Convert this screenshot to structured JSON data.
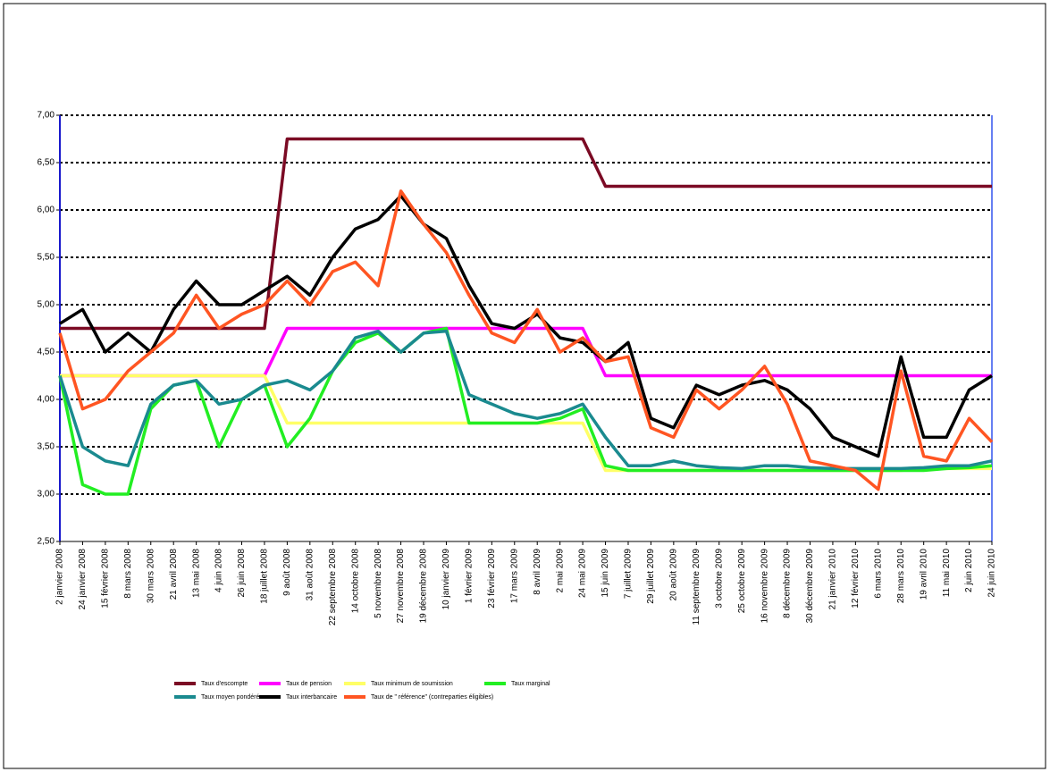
{
  "chart_data": {
    "type": "line",
    "categories": [
      "2 janvier 2008",
      "24 janvier 2008",
      "15 février 2008",
      "8 mars 2008",
      "30 mars 2008",
      "21 avril 2008",
      "13 mai 2008",
      "4 juin 2008",
      "26 juin 2008",
      "18 juillet 2008",
      "9 août 2008",
      "31 août 2008",
      "22 septembre 2008",
      "14 octobre 2008",
      "5 novembre 2008",
      "27 novembre 2008",
      "19 décembre 2008",
      "10 janvier 2009",
      "1 février 2009",
      "23 février 2009",
      "17 mars 2009",
      "8 avril 2009",
      "2 mai 2009",
      "24 mai 2009",
      "15 juin 2009",
      "7 juillet 2009",
      "29 juillet 2009",
      "20 août 2009",
      "11 septembre 2009",
      "3 octobre 2009",
      "25 octobre 2009",
      "16 novembre 2009",
      "8 décembre 2009",
      "30 décembre 2009",
      "21 janvier 2010",
      "12 février 2010",
      "6 mars 2010",
      "28 mars 2010",
      "19 avril 2010",
      "11 mai 2010",
      "2 juin 2010",
      "24 juin 2010"
    ],
    "series": [
      {
        "name": "Taux d'escompte",
        "color": "#7b0a24",
        "values": [
          4.75,
          4.75,
          4.75,
          4.75,
          4.75,
          4.75,
          4.75,
          4.75,
          4.75,
          4.75,
          6.75,
          6.75,
          6.75,
          6.75,
          6.75,
          6.75,
          6.75,
          6.75,
          6.75,
          6.75,
          6.75,
          6.75,
          6.75,
          6.75,
          6.25,
          6.25,
          6.25,
          6.25,
          6.25,
          6.25,
          6.25,
          6.25,
          6.25,
          6.25,
          6.25,
          6.25,
          6.25,
          6.25,
          6.25,
          6.25,
          6.25,
          6.25
        ]
      },
      {
        "name": "Taux de pension",
        "color": "#ff00ff",
        "values": [
          4.25,
          4.25,
          4.25,
          4.25,
          4.25,
          4.25,
          4.25,
          4.25,
          4.25,
          4.25,
          4.75,
          4.75,
          4.75,
          4.75,
          4.75,
          4.75,
          4.75,
          4.75,
          4.75,
          4.75,
          4.75,
          4.75,
          4.75,
          4.75,
          4.25,
          4.25,
          4.25,
          4.25,
          4.25,
          4.25,
          4.25,
          4.25,
          4.25,
          4.25,
          4.25,
          4.25,
          4.25,
          4.25,
          4.25,
          4.25,
          4.25,
          4.25
        ]
      },
      {
        "name": "Taux minimum de soumission",
        "color": "#ffff66",
        "values": [
          4.25,
          4.25,
          4.25,
          4.25,
          4.25,
          4.25,
          4.25,
          4.25,
          4.25,
          4.25,
          3.75,
          3.75,
          3.75,
          3.75,
          3.75,
          3.75,
          3.75,
          3.75,
          3.75,
          3.75,
          3.75,
          3.75,
          3.75,
          3.75,
          3.25,
          3.25,
          3.25,
          3.25,
          3.25,
          3.25,
          3.25,
          3.25,
          3.25,
          3.25,
          3.25,
          3.25,
          3.25,
          3.25,
          3.27,
          3.27,
          3.27,
          3.27
        ]
      },
      {
        "name": "Taux marginal",
        "color": "#22ee22",
        "values": [
          4.25,
          3.1,
          3.0,
          3.0,
          3.9,
          4.15,
          4.2,
          3.5,
          4.0,
          4.15,
          3.5,
          3.8,
          4.3,
          4.6,
          4.7,
          4.5,
          4.7,
          4.75,
          3.75,
          3.75,
          3.75,
          3.75,
          3.8,
          3.9,
          3.3,
          3.25,
          3.25,
          3.25,
          3.25,
          3.25,
          3.25,
          3.25,
          3.25,
          3.25,
          3.25,
          3.25,
          3.25,
          3.25,
          3.25,
          3.27,
          3.28,
          3.3
        ]
      },
      {
        "name": "Taux moyen pondéré",
        "color": "#1a8a8f",
        "values": [
          4.25,
          3.5,
          3.35,
          3.3,
          3.95,
          4.15,
          4.2,
          3.95,
          4.0,
          4.15,
          4.2,
          4.1,
          4.3,
          4.65,
          4.72,
          4.5,
          4.7,
          4.72,
          4.05,
          3.95,
          3.85,
          3.8,
          3.85,
          3.95,
          3.6,
          3.3,
          3.3,
          3.35,
          3.3,
          3.28,
          3.27,
          3.3,
          3.3,
          3.28,
          3.27,
          3.27,
          3.27,
          3.27,
          3.28,
          3.3,
          3.3,
          3.35
        ]
      },
      {
        "name": "Taux interbancaire",
        "color": "#000000",
        "values": [
          4.8,
          4.95,
          4.5,
          4.7,
          4.5,
          4.95,
          5.25,
          5.0,
          5.0,
          5.15,
          5.3,
          5.1,
          5.5,
          5.8,
          5.9,
          6.15,
          5.85,
          5.7,
          5.2,
          4.8,
          4.75,
          4.9,
          4.65,
          4.6,
          4.4,
          4.6,
          3.8,
          3.7,
          4.15,
          4.05,
          4.15,
          4.2,
          4.1,
          3.9,
          3.6,
          3.5,
          3.4,
          4.45,
          3.6,
          3.6,
          4.1,
          4.25
        ]
      },
      {
        "name": "Taux de \" référence\" (contreparties éligibles)",
        "color": "#ff5522",
        "values": [
          4.7,
          3.9,
          4.0,
          4.3,
          4.5,
          4.7,
          5.1,
          4.75,
          4.9,
          5.0,
          5.25,
          5.0,
          5.35,
          5.45,
          5.2,
          6.2,
          5.85,
          5.55,
          5.1,
          4.7,
          4.6,
          4.95,
          4.5,
          4.65,
          4.4,
          4.45,
          3.7,
          3.6,
          4.1,
          3.9,
          4.1,
          4.35,
          3.95,
          3.35,
          3.3,
          3.25,
          3.05,
          4.3,
          3.4,
          3.35,
          3.8,
          3.55
        ]
      }
    ],
    "ylim": [
      2.5,
      7.0
    ],
    "yticks": [
      {
        "value": 2.5,
        "label": "2,50"
      },
      {
        "value": 3.0,
        "label": "3,00"
      },
      {
        "value": 3.5,
        "label": "3,50"
      },
      {
        "value": 4.0,
        "label": "4,00"
      },
      {
        "value": 4.5,
        "label": "4,50"
      },
      {
        "value": 5.0,
        "label": "5,00"
      },
      {
        "value": 5.5,
        "label": "5,50"
      },
      {
        "value": 6.0,
        "label": "6,00"
      },
      {
        "value": 6.5,
        "label": "6,50"
      },
      {
        "value": 7.0,
        "label": "7,00"
      }
    ],
    "grid": true,
    "legend": "bottom"
  }
}
